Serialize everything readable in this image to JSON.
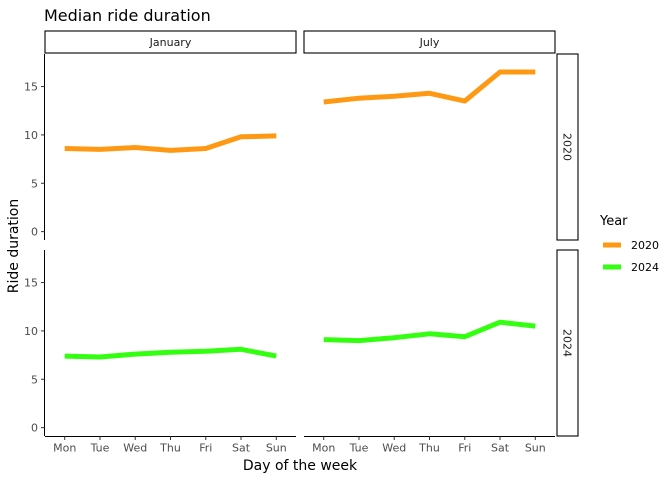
{
  "chart_data": {
    "type": "line",
    "title": "Median ride duration",
    "xlabel": "Day of the week",
    "ylabel": "Ride duration",
    "categories": [
      "Mon",
      "Tue",
      "Wed",
      "Thu",
      "Fri",
      "Sat",
      "Sun"
    ],
    "ylim": [
      0,
      17.5
    ],
    "y_ticks": [
      0,
      5,
      10,
      15
    ],
    "grid": false,
    "column_facets": [
      "January",
      "July"
    ],
    "row_facets": [
      "2020",
      "2024"
    ],
    "legend": {
      "title": "Year",
      "position": "right",
      "entries": [
        {
          "label": "2020",
          "color": "#ff9913"
        },
        {
          "label": "2024",
          "color": "#33ff10"
        }
      ]
    },
    "panels": [
      {
        "column": "January",
        "row": "2020",
        "series": "2020",
        "values": [
          8.6,
          8.5,
          8.7,
          8.4,
          8.6,
          9.8,
          9.9
        ]
      },
      {
        "column": "July",
        "row": "2020",
        "series": "2020",
        "values": [
          13.4,
          13.8,
          14.0,
          14.3,
          13.5,
          16.5,
          16.5
        ]
      },
      {
        "column": "January",
        "row": "2024",
        "series": "2024",
        "values": [
          7.4,
          7.3,
          7.6,
          7.8,
          7.9,
          8.1,
          7.4
        ]
      },
      {
        "column": "July",
        "row": "2024",
        "series": "2024",
        "values": [
          9.1,
          9.0,
          9.3,
          9.7,
          9.4,
          10.9,
          10.5
        ]
      }
    ]
  }
}
